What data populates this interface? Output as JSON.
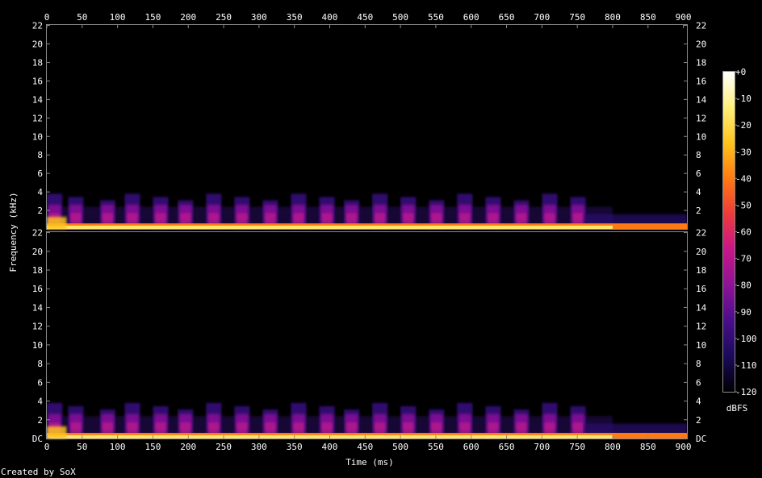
{
  "chart_data": {
    "type": "heatmap",
    "title": "",
    "xlabel": "Time (ms)",
    "ylabel": "Frequency (kHz)",
    "credit": "Created by SoX",
    "x_ticks": [
      0,
      50,
      100,
      150,
      200,
      250,
      300,
      350,
      400,
      450,
      500,
      550,
      600,
      650,
      700,
      750,
      800,
      850,
      900
    ],
    "xlim": [
      0,
      905
    ],
    "y_ticks": [
      "DC",
      "2",
      "4",
      "6",
      "8",
      "10",
      "12",
      "14",
      "16",
      "18",
      "20",
      "22"
    ],
    "ylim_khz": [
      0,
      22.05
    ],
    "channels": [
      {
        "channel": 1,
        "peak_band_khz": [
          0,
          0.6
        ],
        "onsets_ms": [
          0,
          30,
          75,
          110,
          150,
          185,
          225,
          265,
          305,
          345,
          385,
          420,
          460,
          500,
          540,
          580,
          620,
          660,
          700,
          740
        ]
      },
      {
        "channel": 2,
        "peak_band_khz": [
          0,
          0.6
        ],
        "onsets_ms": [
          0,
          30,
          75,
          110,
          150,
          185,
          225,
          265,
          305,
          345,
          385,
          420,
          460,
          500,
          540,
          580,
          620,
          660,
          700,
          740
        ]
      }
    ],
    "colorbar": {
      "unit": "dBFS",
      "range": [
        -120,
        0
      ],
      "ticks": [
        "+0",
        "-10",
        "-20",
        "-30",
        "-40",
        "-50",
        "-60",
        "-70",
        "-80",
        "-90",
        "-100",
        "-110",
        "-120"
      ],
      "colors": [
        "#000000",
        "#1a0a5a",
        "#4a0e8c",
        "#8e1396",
        "#c8158a",
        "#ee3a3a",
        "#ff7a12",
        "#ffc31c",
        "#fff07a",
        "#ffffff"
      ]
    },
    "grid": false,
    "legend_position": "right"
  }
}
